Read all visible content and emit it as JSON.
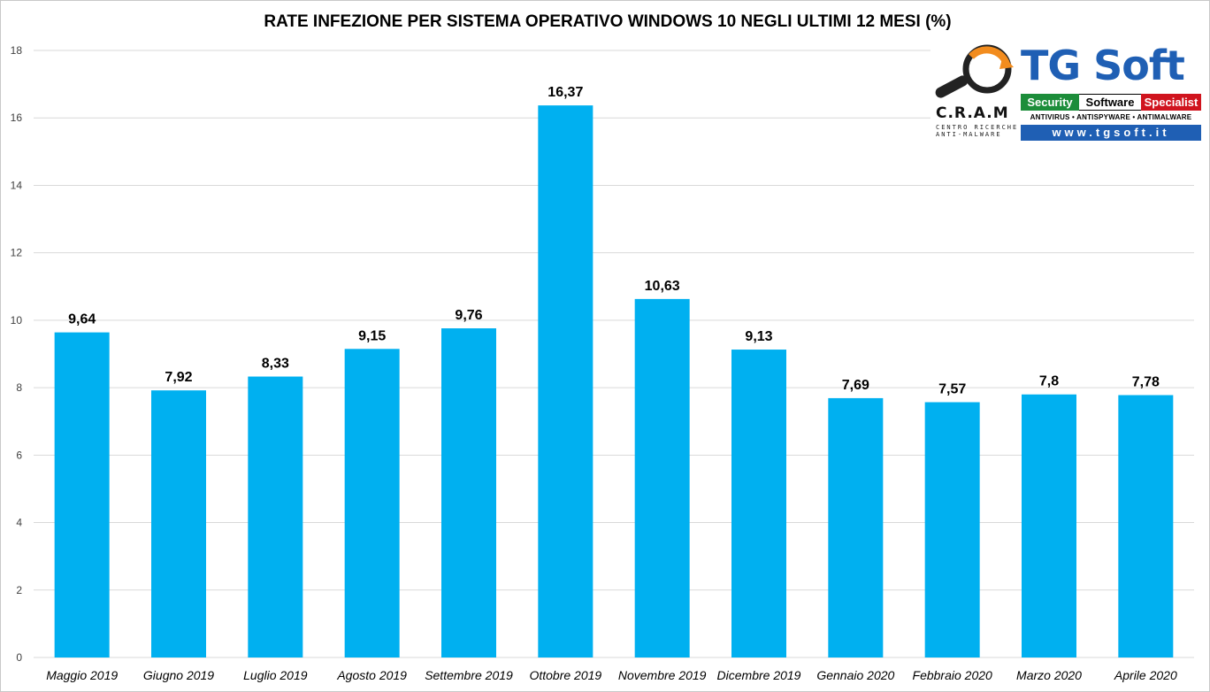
{
  "chart_data": {
    "type": "bar",
    "title": "RATE INFEZIONE PER SISTEMA OPERATIVO WINDOWS 10 NEGLI ULTIMI 12 MESI (%)",
    "categories": [
      "Maggio 2019",
      "Giugno 2019",
      "Luglio 2019",
      "Agosto 2019",
      "Settembre 2019",
      "Ottobre 2019",
      "Novembre 2019",
      "Dicembre 2019",
      "Gennaio 2020",
      "Febbraio 2020",
      "Marzo 2020",
      "Aprile 2020"
    ],
    "values": [
      9.64,
      7.92,
      8.33,
      9.15,
      9.76,
      16.37,
      10.63,
      9.13,
      7.69,
      7.57,
      7.8,
      7.78
    ],
    "data_labels": [
      "9,64",
      "7,92",
      "8,33",
      "9,15",
      "9,76",
      "16,37",
      "10,63",
      "9,13",
      "7,69",
      "7,57",
      "7,8",
      "7,78"
    ],
    "yticks": [
      "0",
      "2",
      "4",
      "6",
      "8",
      "10",
      "12",
      "14",
      "16",
      "18"
    ],
    "ylim": [
      0,
      18
    ],
    "grid": true,
    "legend": "none",
    "bar_color": "#00b0f0",
    "xlabel": "",
    "ylabel": ""
  },
  "logo": {
    "brand": "TG Soft",
    "banner_security": "Security",
    "banner_software": "Software",
    "banner_specialist": "Specialist",
    "tagline": "ANTIVIRUS • ANTISPYWARE • ANTIMALWARE",
    "url": "www.tgsoft.it",
    "cram": "C.R.A.M",
    "cram_sub": "CENTRO RICERCHE ANTI-MALWARE"
  }
}
